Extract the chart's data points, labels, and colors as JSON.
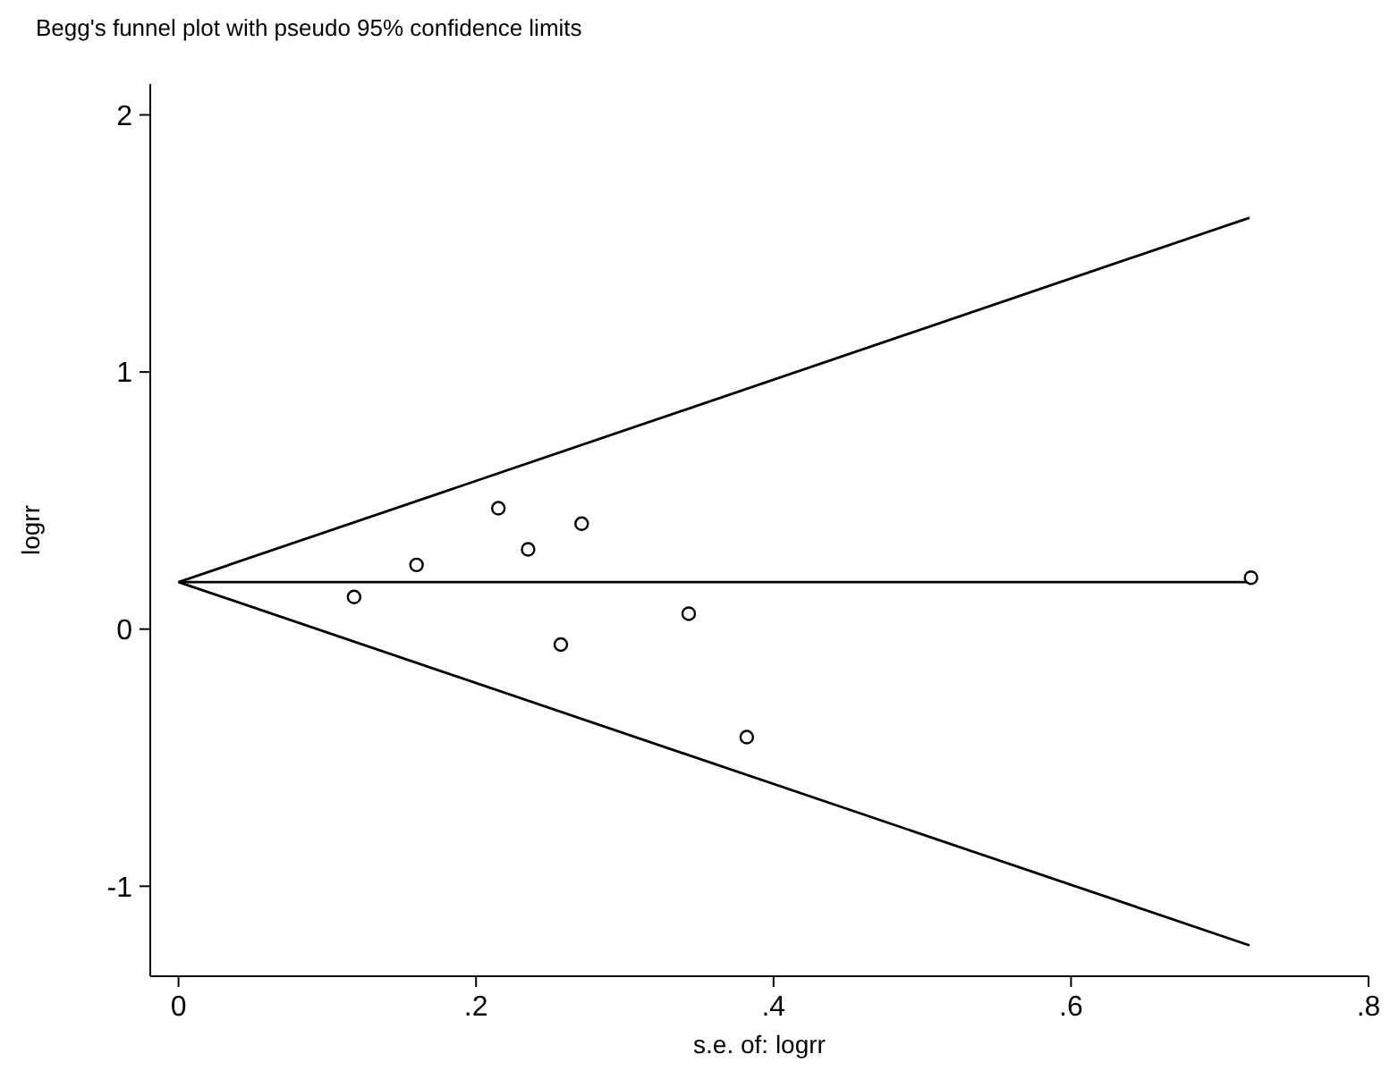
{
  "chart_data": {
    "type": "scatter",
    "title": "Begg's funnel plot with pseudo 95% confidence limits",
    "xlabel": "s.e. of: logrr",
    "ylabel": "logrr",
    "xlim": [
      -0.019,
      0.8
    ],
    "ylim": [
      -1.35,
      2.12
    ],
    "xticks": [
      {
        "value": 0,
        "label": "0"
      },
      {
        "value": 0.2,
        "label": ".2"
      },
      {
        "value": 0.4,
        "label": ".4"
      },
      {
        "value": 0.6,
        "label": ".6"
      },
      {
        "value": 0.8,
        "label": ".8"
      }
    ],
    "yticks": [
      -1,
      0,
      1,
      2
    ],
    "grid": false,
    "marker": "circle",
    "series": [
      {
        "type": "line",
        "color": "#000000",
        "x": [
          0,
          0.72
        ],
        "values": [
          0.183,
          1.6
        ],
        "marker": "none"
      },
      {
        "type": "line",
        "color": "#000000",
        "x": [
          0,
          0.72
        ],
        "values": [
          0.183,
          0.183
        ],
        "marker": "none"
      },
      {
        "type": "line",
        "color": "#000000",
        "x": [
          0,
          0.72
        ],
        "values": [
          0.183,
          -1.23
        ],
        "marker": "none"
      },
      {
        "color": "#000000",
        "x": [
          0.118,
          0.16,
          0.215,
          0.235,
          0.271,
          0.257,
          0.343,
          0.382,
          0.721
        ],
        "values": [
          0.125,
          0.25,
          0.47,
          0.31,
          0.41,
          -0.06,
          0.06,
          -0.42,
          0.2
        ]
      }
    ]
  }
}
